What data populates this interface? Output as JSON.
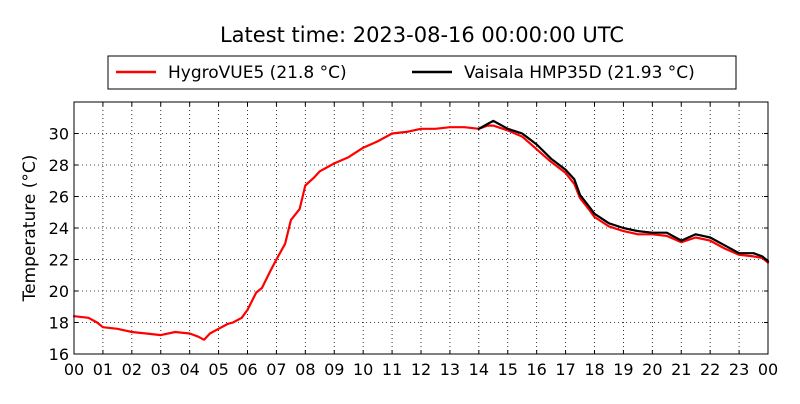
{
  "chart_data": {
    "type": "line",
    "title": "Latest time: 2023-08-16 00:00:00 UTC",
    "xlabel": "",
    "ylabel": "Temperature (°C)",
    "xlim": [
      0,
      24
    ],
    "ylim": [
      16,
      32
    ],
    "x_ticks": [
      "00",
      "01",
      "02",
      "03",
      "04",
      "05",
      "06",
      "07",
      "08",
      "09",
      "10",
      "11",
      "12",
      "13",
      "14",
      "15",
      "16",
      "17",
      "18",
      "19",
      "20",
      "21",
      "22",
      "23",
      "00"
    ],
    "y_ticks": [
      16,
      18,
      20,
      22,
      24,
      26,
      28,
      30
    ],
    "grid": true,
    "legend_position": "top",
    "series": [
      {
        "name": "HygroVUE5 (21.8 °C)",
        "color": "#ff0000",
        "x": [
          0,
          0.5,
          0.8,
          1.0,
          1.5,
          2.0,
          2.5,
          3.0,
          3.5,
          4.0,
          4.3,
          4.5,
          4.7,
          5.0,
          5.3,
          5.5,
          5.8,
          6.0,
          6.3,
          6.5,
          6.8,
          7.0,
          7.3,
          7.5,
          7.8,
          8.0,
          8.3,
          8.5,
          9.0,
          9.5,
          10.0,
          10.5,
          11.0,
          11.5,
          12.0,
          12.5,
          13.0,
          13.5,
          14.0,
          14.3,
          14.5,
          15.0,
          15.5,
          16.0,
          16.5,
          17.0,
          17.3,
          17.5,
          17.8,
          18.0,
          18.5,
          19.0,
          19.5,
          20.0,
          20.5,
          21.0,
          21.5,
          22.0,
          22.5,
          23.0,
          23.5,
          23.8,
          24.0
        ],
        "y": [
          18.4,
          18.3,
          18.0,
          17.7,
          17.6,
          17.4,
          17.3,
          17.2,
          17.4,
          17.3,
          17.1,
          16.9,
          17.3,
          17.6,
          17.9,
          18.0,
          18.3,
          18.8,
          19.9,
          20.2,
          21.3,
          22.0,
          23.0,
          24.5,
          25.2,
          26.7,
          27.2,
          27.6,
          28.1,
          28.5,
          29.1,
          29.5,
          30.0,
          30.1,
          30.3,
          30.3,
          30.4,
          30.4,
          30.3,
          30.5,
          30.5,
          30.2,
          29.8,
          29.0,
          28.2,
          27.5,
          26.8,
          25.9,
          25.2,
          24.7,
          24.1,
          23.8,
          23.6,
          23.6,
          23.5,
          23.1,
          23.4,
          23.2,
          22.7,
          22.3,
          22.2,
          22.1,
          21.8
        ]
      },
      {
        "name": "Vaisala HMP35D (21.93 °C)",
        "color": "#000000",
        "x": [
          14.0,
          14.3,
          14.5,
          15.0,
          15.5,
          16.0,
          16.5,
          17.0,
          17.3,
          17.5,
          17.8,
          18.0,
          18.5,
          19.0,
          19.5,
          20.0,
          20.5,
          21.0,
          21.5,
          22.0,
          22.5,
          23.0,
          23.5,
          23.8,
          24.0
        ],
        "y": [
          30.3,
          30.6,
          30.8,
          30.3,
          30.0,
          29.3,
          28.4,
          27.7,
          27.1,
          26.1,
          25.4,
          24.9,
          24.3,
          24.0,
          23.8,
          23.7,
          23.7,
          23.2,
          23.6,
          23.4,
          22.9,
          22.4,
          22.4,
          22.2,
          21.9
        ]
      }
    ]
  }
}
